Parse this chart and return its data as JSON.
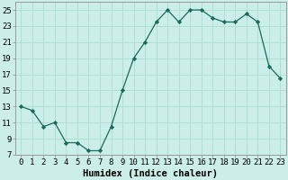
{
  "x": [
    0,
    1,
    2,
    3,
    4,
    5,
    6,
    7,
    8,
    9,
    10,
    11,
    12,
    13,
    14,
    15,
    16,
    17,
    18,
    19,
    20,
    21,
    22,
    23
  ],
  "y": [
    13,
    12.5,
    10.5,
    11,
    8.5,
    8.5,
    7.5,
    7.5,
    10.5,
    15,
    19,
    21,
    23.5,
    25,
    23.5,
    25,
    25,
    24,
    23.5,
    23.5,
    24.5,
    23.5,
    18,
    16.5
  ],
  "line_color": "#1a6b5a",
  "marker": "D",
  "marker_size": 2.2,
  "bg_color": "#cceee8",
  "grid_color": "#aaddcc",
  "xlabel": "Humidex (Indice chaleur)",
  "xlim": [
    -0.5,
    23.5
  ],
  "ylim": [
    7,
    26
  ],
  "yticks": [
    7,
    9,
    11,
    13,
    15,
    17,
    19,
    21,
    23,
    25
  ],
  "xticks": [
    0,
    1,
    2,
    3,
    4,
    5,
    6,
    7,
    8,
    9,
    10,
    11,
    12,
    13,
    14,
    15,
    16,
    17,
    18,
    19,
    20,
    21,
    22,
    23
  ],
  "xlabel_fontsize": 7.5,
  "tick_fontsize": 6.5,
  "linewidth": 0.9
}
